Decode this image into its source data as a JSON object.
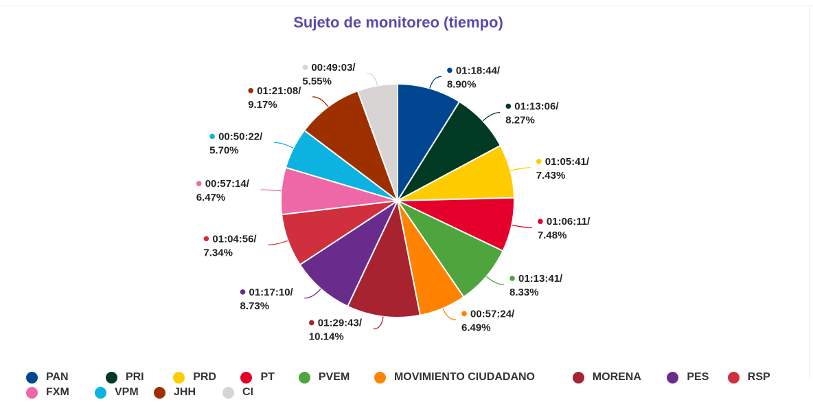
{
  "chart_data": {
    "type": "pie",
    "title": "Sujeto de monitoreo (tiempo)",
    "legend_position": "bottom",
    "slices": [
      {
        "name": "PAN",
        "time": "01:18:44",
        "percent": 8.9,
        "color": "#004691"
      },
      {
        "name": "PRI",
        "time": "01:13:06",
        "percent": 8.27,
        "color": "#003a22"
      },
      {
        "name": "PRD",
        "time": "01:05:41",
        "percent": 7.43,
        "color": "#ffcc00"
      },
      {
        "name": "PT",
        "time": "01:06:11",
        "percent": 7.48,
        "color": "#e4002b"
      },
      {
        "name": "PVEM",
        "time": "01:13:41",
        "percent": 8.33,
        "color": "#4ea53d"
      },
      {
        "name": "MOVIMIENTO CIUDADANO",
        "time": "00:57:24",
        "percent": 6.49,
        "color": "#ff8300"
      },
      {
        "name": "MORENA",
        "time": "01:29:43",
        "percent": 10.14,
        "color": "#a7232f"
      },
      {
        "name": "PES",
        "time": "01:17:10",
        "percent": 8.73,
        "color": "#6a2c8c"
      },
      {
        "name": "RSP",
        "time": "01:04:56",
        "percent": 7.34,
        "color": "#d02f3d"
      },
      {
        "name": "FXM",
        "time": "00:57:14",
        "percent": 6.47,
        "color": "#ee67a6"
      },
      {
        "name": "VPM",
        "time": "00:50:22",
        "percent": 5.7,
        "color": "#0db3e0"
      },
      {
        "name": "JHH",
        "time": "01:21:08",
        "percent": 9.17,
        "color": "#9e3000"
      },
      {
        "name": "CI",
        "time": "00:49:03",
        "percent": 5.55,
        "color": "#d8d4d4"
      }
    ]
  }
}
